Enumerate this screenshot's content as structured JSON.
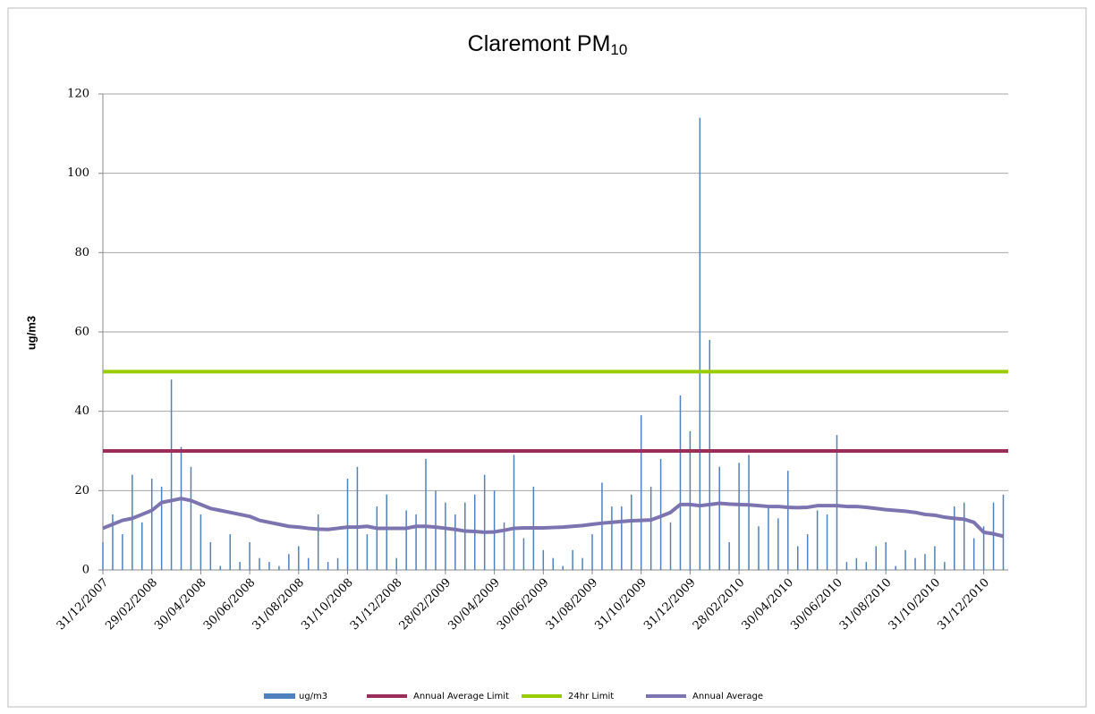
{
  "chart_data": {
    "type": "bar-line",
    "title": "Claremont PM",
    "title_subscript": "10",
    "y_label": "ug/m3",
    "ylim": [
      0,
      120
    ],
    "yticks": [
      0,
      20,
      40,
      60,
      80,
      100,
      120
    ],
    "grid": true,
    "categories": [
      "31/12/2007",
      null,
      null,
      null,
      null,
      "29/02/2008",
      null,
      null,
      null,
      null,
      "30/04/2008",
      null,
      null,
      null,
      null,
      "30/06/2008",
      null,
      null,
      null,
      null,
      "31/08/2008",
      null,
      null,
      null,
      null,
      "31/10/2008",
      null,
      null,
      null,
      null,
      "31/12/2008",
      null,
      null,
      null,
      null,
      "28/02/2009",
      null,
      null,
      null,
      null,
      "30/04/2009",
      null,
      null,
      null,
      null,
      "30/06/2009",
      null,
      null,
      null,
      null,
      "31/08/2009",
      null,
      null,
      null,
      null,
      "31/10/2009",
      null,
      null,
      null,
      null,
      "31/12/2009",
      null,
      null,
      null,
      null,
      "28/02/2010",
      null,
      null,
      null,
      null,
      "30/04/2010",
      null,
      null,
      null,
      null,
      "30/06/2010",
      null,
      null,
      null,
      null,
      "31/08/2010",
      null,
      null,
      null,
      null,
      "31/10/2010",
      null,
      null,
      null,
      null,
      "31/12/2010",
      null,
      null
    ],
    "series": [
      {
        "name": "ug/m3",
        "kind": "bar",
        "color": "#4f81bd",
        "values": [
          7,
          14,
          9,
          24,
          12,
          23,
          21,
          48,
          31,
          26,
          14,
          7,
          1,
          9,
          2,
          7,
          3,
          2,
          1,
          4,
          6,
          3,
          14,
          2,
          3,
          23,
          26,
          9,
          16,
          19,
          3,
          15,
          14,
          28,
          20,
          17,
          14,
          17,
          19,
          24,
          20,
          12,
          29,
          8,
          21,
          5,
          3,
          1,
          5,
          3,
          9,
          22,
          16,
          16,
          19,
          39,
          21,
          28,
          12,
          44,
          35,
          114,
          58,
          26,
          7,
          27,
          29,
          11,
          16,
          13,
          25,
          6,
          9,
          15,
          14,
          34,
          2,
          3,
          2,
          6,
          7,
          1,
          5,
          3,
          4,
          6,
          2,
          16,
          17,
          8,
          11,
          17,
          19
        ]
      },
      {
        "name": "Annual Average Limit",
        "kind": "hline",
        "color": "#9b2d5a",
        "value": 30
      },
      {
        "name": "24hr Limit",
        "kind": "hline",
        "color": "#99cc00",
        "value": 50
      },
      {
        "name": "Annual Average",
        "kind": "line",
        "color": "#7b74b0",
        "values": [
          10.5,
          11.5,
          12.5,
          13,
          14,
          15,
          17,
          17.5,
          18,
          17.5,
          16.5,
          15.5,
          15,
          14.5,
          14,
          13.5,
          12.5,
          12,
          11.5,
          11,
          10.8,
          10.5,
          10.3,
          10.2,
          10.5,
          10.8,
          10.8,
          11,
          10.5,
          10.5,
          10.5,
          10.5,
          11,
          11,
          10.8,
          10.5,
          10.2,
          9.8,
          9.7,
          9.5,
          9.6,
          10,
          10.5,
          10.6,
          10.6,
          10.6,
          10.7,
          10.8,
          11,
          11.2,
          11.5,
          11.8,
          12,
          12.2,
          12.4,
          12.5,
          12.6,
          13.5,
          14.5,
          16.5,
          16.5,
          16.2,
          16.5,
          16.8,
          16.6,
          16.5,
          16.4,
          16.2,
          16,
          16,
          15.8,
          15.7,
          15.8,
          16.2,
          16.2,
          16.2,
          16,
          16,
          15.8,
          15.5,
          15.2,
          15,
          14.8,
          14.5,
          14,
          13.8,
          13.3,
          13,
          12.8,
          12,
          9.5,
          9.1,
          8.5
        ]
      }
    ]
  }
}
